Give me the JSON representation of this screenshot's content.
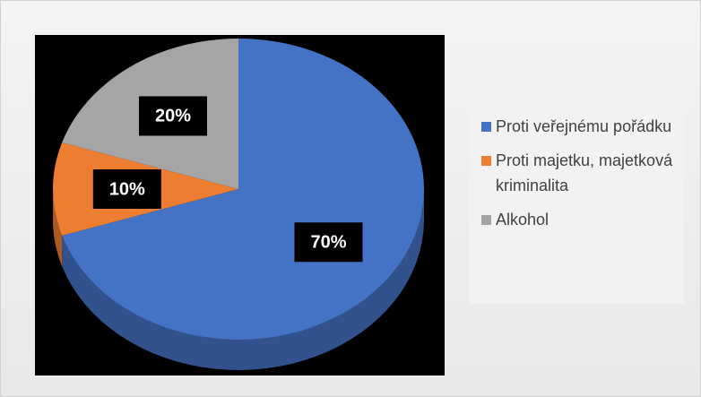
{
  "chart_data": {
    "type": "pie",
    "categories": [
      "Proti veřejnému pořádku",
      "Proti majetku, majetková kriminalita",
      "Alkohol"
    ],
    "values": [
      70,
      10,
      20
    ],
    "value_labels": [
      "70%",
      "10%",
      "20%"
    ],
    "colors": [
      "#4472c4",
      "#ed7d31",
      "#a5a5a5"
    ],
    "legend": "right"
  }
}
